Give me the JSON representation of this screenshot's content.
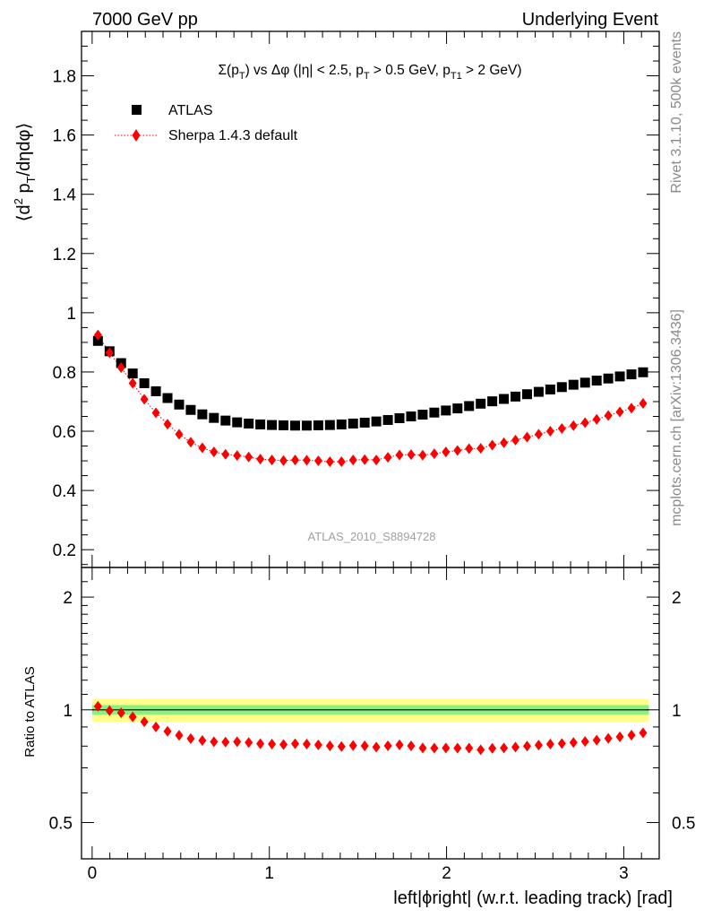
{
  "header": {
    "left": "7000 GeV pp",
    "right": "Underlying Event"
  },
  "side_labels": {
    "rivet": "Rivet 3.1.10,  500k events",
    "mcplots": "mcplots.cern.ch [arXiv:1306.3436]"
  },
  "analysis_id": "ATLAS_2010_S8894728",
  "chart_data": [
    {
      "type": "scatter",
      "panel": "main",
      "title_parts": [
        "Σ(p",
        "T",
        ") vs Δφ (|η| < 2.5, p",
        "T",
        " > 0.5 GeV, p",
        "T1",
        " > 2 GeV)"
      ],
      "ylabel_parts": [
        "⟨d",
        "2",
        " p",
        "T",
        "/dηdφ⟩"
      ],
      "xlabel": "",
      "xlim": [
        -0.06,
        3.2
      ],
      "ylim": [
        0.14,
        1.95
      ],
      "yticks": [
        0.2,
        0.4,
        0.6,
        0.8,
        1.0,
        1.2,
        1.4,
        1.6,
        1.8
      ],
      "ytick_labels": [
        "0.2",
        "0.4",
        "0.6",
        "0.8",
        "1",
        "1.2",
        "1.4",
        "1.6",
        "1.8"
      ],
      "grid": false,
      "legend_position": "top-left",
      "x": [
        0.0327,
        0.0982,
        0.1636,
        0.2291,
        0.2945,
        0.36,
        0.4254,
        0.4909,
        0.5563,
        0.6218,
        0.6872,
        0.7527,
        0.8181,
        0.8836,
        0.949,
        1.0145,
        1.0799,
        1.1454,
        1.2108,
        1.2763,
        1.3417,
        1.4072,
        1.4726,
        1.5381,
        1.6035,
        1.669,
        1.7344,
        1.7999,
        1.8653,
        1.9308,
        1.9962,
        2.0617,
        2.1271,
        2.1926,
        2.258,
        2.3235,
        2.3889,
        2.4544,
        2.5198,
        2.5853,
        2.6507,
        2.7162,
        2.7816,
        2.8471,
        2.9125,
        2.978,
        3.0434,
        3.1089
      ],
      "series": [
        {
          "name": "ATLAS",
          "marker": "square",
          "color": "#000000",
          "values": [
            0.905,
            0.87,
            0.83,
            0.795,
            0.762,
            0.735,
            0.712,
            0.69,
            0.672,
            0.657,
            0.645,
            0.636,
            0.63,
            0.626,
            0.623,
            0.621,
            0.62,
            0.619,
            0.619,
            0.62,
            0.621,
            0.623,
            0.626,
            0.629,
            0.633,
            0.638,
            0.644,
            0.65,
            0.656,
            0.663,
            0.67,
            0.677,
            0.685,
            0.693,
            0.701,
            0.709,
            0.717,
            0.725,
            0.733,
            0.741,
            0.749,
            0.757,
            0.764,
            0.771,
            0.778,
            0.785,
            0.792,
            0.799
          ]
        },
        {
          "name": "Sherpa 1.4.3 default",
          "marker": "diamond",
          "color": "#ff0000",
          "line": "dotted",
          "values": [
            0.925,
            0.865,
            0.815,
            0.762,
            0.708,
            0.662,
            0.624,
            0.59,
            0.563,
            0.544,
            0.53,
            0.522,
            0.518,
            0.513,
            0.506,
            0.503,
            0.501,
            0.503,
            0.502,
            0.5,
            0.497,
            0.497,
            0.503,
            0.504,
            0.503,
            0.512,
            0.52,
            0.521,
            0.519,
            0.524,
            0.53,
            0.535,
            0.541,
            0.542,
            0.553,
            0.561,
            0.57,
            0.58,
            0.59,
            0.6,
            0.609,
            0.619,
            0.629,
            0.64,
            0.653,
            0.665,
            0.678,
            0.694
          ]
        }
      ]
    },
    {
      "type": "scatter",
      "panel": "ratio",
      "ylabel": "Ratio to ATLAS",
      "xlabel": "left|ϕright| (w.r.t. leading track) [rad]",
      "xlim": [
        -0.06,
        3.2
      ],
      "ylim": [
        0.4,
        2.4
      ],
      "log_y": true,
      "yticks": [
        0.5,
        1,
        2
      ],
      "ytick_labels": [
        "0.5",
        "1",
        "2"
      ],
      "xticks": [
        0,
        1,
        2,
        3
      ],
      "xtick_labels": [
        "0",
        "1",
        "2",
        "3"
      ],
      "uncertainty_bands": [
        {
          "color": "#ffff88",
          "lower": 0.93,
          "upper": 1.07
        },
        {
          "color": "#90ee80",
          "lower": 0.97,
          "upper": 1.03
        }
      ],
      "reference_line": 1,
      "series": [
        {
          "name": "Sherpa 1.4.3 default",
          "marker": "diamond",
          "color": "#ff0000",
          "values": [
            1.022,
            0.995,
            0.982,
            0.958,
            0.929,
            0.9,
            0.876,
            0.855,
            0.838,
            0.828,
            0.822,
            0.82,
            0.822,
            0.818,
            0.812,
            0.81,
            0.808,
            0.812,
            0.81,
            0.806,
            0.801,
            0.798,
            0.803,
            0.801,
            0.795,
            0.802,
            0.806,
            0.801,
            0.791,
            0.79,
            0.791,
            0.79,
            0.79,
            0.782,
            0.789,
            0.791,
            0.795,
            0.8,
            0.805,
            0.81,
            0.813,
            0.818,
            0.823,
            0.83,
            0.839,
            0.847,
            0.856,
            0.868
          ]
        }
      ]
    }
  ]
}
